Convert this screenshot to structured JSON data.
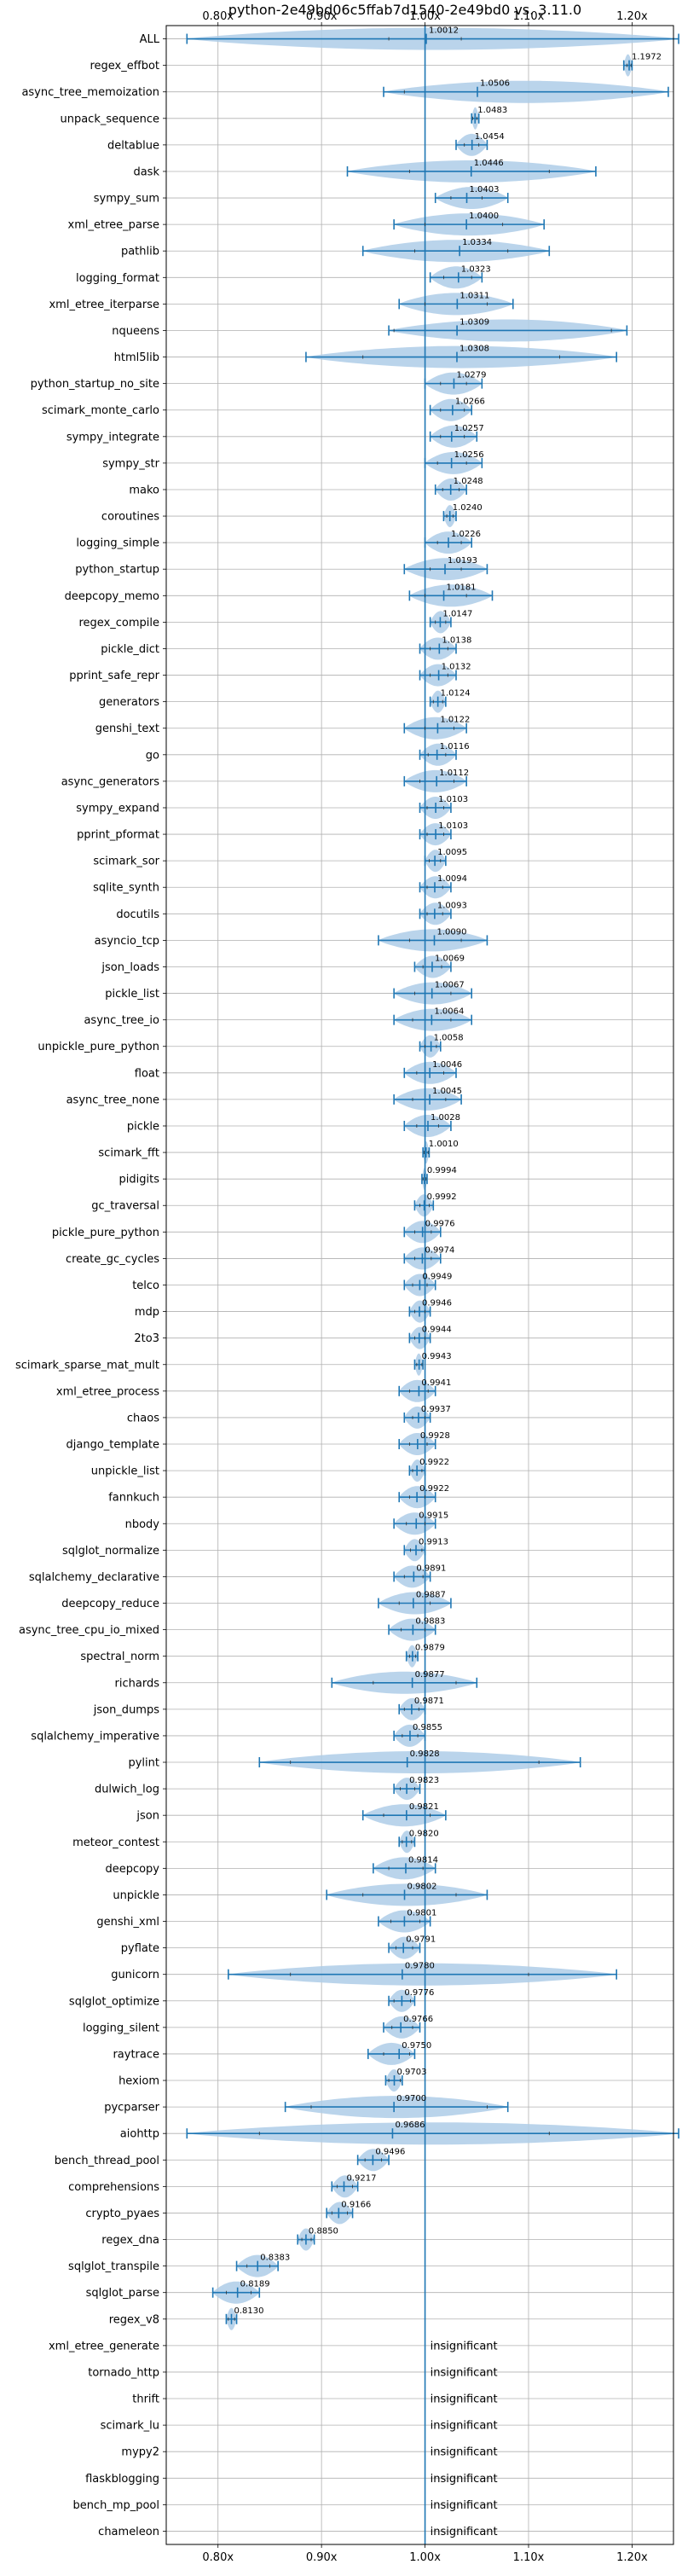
{
  "chart_data": {
    "type": "violin",
    "title": "python-2e49bd06c5ffab7d1540-2e49bd0 vs. 3.11.0",
    "xlim": [
      0.75,
      1.24
    ],
    "xticks": [
      0.8,
      0.9,
      1.0,
      1.1,
      1.2
    ],
    "xtick_labels": [
      "0.80x",
      "0.90x",
      "1.00x",
      "1.10x",
      "1.20x"
    ],
    "grid": true,
    "baseline": 1.0,
    "colors": {
      "violin": "#aecde8",
      "line": "#1f77b4",
      "grid": "#b0b0b0"
    },
    "insignificant_label": "insignificant",
    "benchmarks": [
      {
        "name": "ALL",
        "value": 1.0012,
        "label": "1.0012",
        "min": 0.77,
        "max": 1.245,
        "q1": 0.965,
        "q3": 1.035
      },
      {
        "name": "regex_effbot",
        "value": 1.1972,
        "label": "1.1972",
        "min": 1.192,
        "max": 1.2,
        "q1": 1.195,
        "q3": 1.199
      },
      {
        "name": "async_tree_memoization",
        "value": 1.0506,
        "label": "1.0506",
        "min": 0.96,
        "max": 1.235,
        "q1": 0.98,
        "q3": 1.2
      },
      {
        "name": "unpack_sequence",
        "value": 1.0483,
        "label": "1.0483",
        "min": 1.045,
        "max": 1.052,
        "q1": 1.046,
        "q3": 1.05
      },
      {
        "name": "deltablue",
        "value": 1.0454,
        "label": "1.0454",
        "min": 1.03,
        "max": 1.06,
        "q1": 1.038,
        "q3": 1.052
      },
      {
        "name": "dask",
        "value": 1.0446,
        "label": "1.0446",
        "min": 0.925,
        "max": 1.165,
        "q1": 0.985,
        "q3": 1.12
      },
      {
        "name": "sympy_sum",
        "value": 1.0403,
        "label": "1.0403",
        "min": 1.01,
        "max": 1.08,
        "q1": 1.025,
        "q3": 1.055
      },
      {
        "name": "xml_etree_parse",
        "value": 1.04,
        "label": "1.0400",
        "min": 0.97,
        "max": 1.115,
        "q1": 1.0,
        "q3": 1.075
      },
      {
        "name": "pathlib",
        "value": 1.0334,
        "label": "1.0334",
        "min": 0.94,
        "max": 1.12,
        "q1": 0.99,
        "q3": 1.08
      },
      {
        "name": "logging_format",
        "value": 1.0323,
        "label": "1.0323",
        "min": 1.005,
        "max": 1.055,
        "q1": 1.018,
        "q3": 1.045
      },
      {
        "name": "xml_etree_iterparse",
        "value": 1.0311,
        "label": "1.0311",
        "min": 0.975,
        "max": 1.085,
        "q1": 1.0,
        "q3": 1.06
      },
      {
        "name": "nqueens",
        "value": 1.0309,
        "label": "1.0309",
        "min": 0.965,
        "max": 1.195,
        "q1": 0.97,
        "q3": 1.18
      },
      {
        "name": "html5lib",
        "value": 1.0308,
        "label": "1.0308",
        "min": 0.885,
        "max": 1.185,
        "q1": 0.94,
        "q3": 1.13
      },
      {
        "name": "python_startup_no_site",
        "value": 1.0279,
        "label": "1.0279",
        "min": 1.0,
        "max": 1.055,
        "q1": 1.015,
        "q3": 1.04
      },
      {
        "name": "scimark_monte_carlo",
        "value": 1.0266,
        "label": "1.0266",
        "min": 1.005,
        "max": 1.045,
        "q1": 1.015,
        "q3": 1.038
      },
      {
        "name": "sympy_integrate",
        "value": 1.0257,
        "label": "1.0257",
        "min": 1.005,
        "max": 1.05,
        "q1": 1.015,
        "q3": 1.038
      },
      {
        "name": "sympy_str",
        "value": 1.0256,
        "label": "1.0256",
        "min": 1.0,
        "max": 1.055,
        "q1": 1.012,
        "q3": 1.04
      },
      {
        "name": "mako",
        "value": 1.0248,
        "label": "1.0248",
        "min": 1.01,
        "max": 1.04,
        "q1": 1.017,
        "q3": 1.033
      },
      {
        "name": "coroutines",
        "value": 1.024,
        "label": "1.0240",
        "min": 1.018,
        "max": 1.03,
        "q1": 1.021,
        "q3": 1.027
      },
      {
        "name": "logging_simple",
        "value": 1.0226,
        "label": "1.0226",
        "min": 1.0,
        "max": 1.045,
        "q1": 1.012,
        "q3": 1.035
      },
      {
        "name": "python_startup",
        "value": 1.0193,
        "label": "1.0193",
        "min": 0.98,
        "max": 1.06,
        "q1": 1.005,
        "q3": 1.035
      },
      {
        "name": "deepcopy_memo",
        "value": 1.0181,
        "label": "1.0181",
        "min": 0.985,
        "max": 1.065,
        "q1": 1.0,
        "q3": 1.04
      },
      {
        "name": "regex_compile",
        "value": 1.0147,
        "label": "1.0147",
        "min": 1.005,
        "max": 1.025,
        "q1": 1.01,
        "q3": 1.02
      },
      {
        "name": "pickle_dict",
        "value": 1.0138,
        "label": "1.0138",
        "min": 0.995,
        "max": 1.03,
        "q1": 1.005,
        "q3": 1.022
      },
      {
        "name": "pprint_safe_repr",
        "value": 1.0132,
        "label": "1.0132",
        "min": 0.995,
        "max": 1.03,
        "q1": 1.005,
        "q3": 1.022
      },
      {
        "name": "generators",
        "value": 1.0124,
        "label": "1.0124",
        "min": 1.005,
        "max": 1.02,
        "q1": 1.008,
        "q3": 1.017
      },
      {
        "name": "genshi_text",
        "value": 1.0122,
        "label": "1.0122",
        "min": 0.98,
        "max": 1.04,
        "q1": 1.0,
        "q3": 1.028
      },
      {
        "name": "go",
        "value": 1.0116,
        "label": "1.0116",
        "min": 0.995,
        "max": 1.03,
        "q1": 1.003,
        "q3": 1.02
      },
      {
        "name": "async_generators",
        "value": 1.0112,
        "label": "1.0112",
        "min": 0.98,
        "max": 1.04,
        "q1": 0.995,
        "q3": 1.028
      },
      {
        "name": "sympy_expand",
        "value": 1.0103,
        "label": "1.0103",
        "min": 0.995,
        "max": 1.025,
        "q1": 1.002,
        "q3": 1.018
      },
      {
        "name": "pprint_pformat",
        "value": 1.0103,
        "label": "1.0103",
        "min": 0.995,
        "max": 1.025,
        "q1": 1.002,
        "q3": 1.018
      },
      {
        "name": "scimark_sor",
        "value": 1.0095,
        "label": "1.0095",
        "min": 1.0,
        "max": 1.02,
        "q1": 1.004,
        "q3": 1.015
      },
      {
        "name": "sqlite_synth",
        "value": 1.0094,
        "label": "1.0094",
        "min": 0.995,
        "max": 1.025,
        "q1": 1.002,
        "q3": 1.017
      },
      {
        "name": "docutils",
        "value": 1.0093,
        "label": "1.0093",
        "min": 0.995,
        "max": 1.025,
        "q1": 1.002,
        "q3": 1.017
      },
      {
        "name": "asyncio_tcp",
        "value": 1.009,
        "label": "1.0090",
        "min": 0.955,
        "max": 1.06,
        "q1": 0.985,
        "q3": 1.035
      },
      {
        "name": "json_loads",
        "value": 1.0069,
        "label": "1.0069",
        "min": 0.99,
        "max": 1.025,
        "q1": 0.998,
        "q3": 1.016
      },
      {
        "name": "pickle_list",
        "value": 1.0067,
        "label": "1.0067",
        "min": 0.97,
        "max": 1.045,
        "q1": 0.99,
        "q3": 1.025
      },
      {
        "name": "async_tree_io",
        "value": 1.0064,
        "label": "1.0064",
        "min": 0.97,
        "max": 1.045,
        "q1": 0.988,
        "q3": 1.025
      },
      {
        "name": "unpickle_pure_python",
        "value": 1.0058,
        "label": "1.0058",
        "min": 0.995,
        "max": 1.015,
        "q1": 1.0,
        "q3": 1.011
      },
      {
        "name": "float",
        "value": 1.0046,
        "label": "1.0046",
        "min": 0.98,
        "max": 1.03,
        "q1": 0.992,
        "q3": 1.018
      },
      {
        "name": "async_tree_none",
        "value": 1.0045,
        "label": "1.0045",
        "min": 0.97,
        "max": 1.035,
        "q1": 0.988,
        "q3": 1.02
      },
      {
        "name": "pickle",
        "value": 1.0028,
        "label": "1.0028",
        "min": 0.98,
        "max": 1.025,
        "q1": 0.992,
        "q3": 1.013
      },
      {
        "name": "scimark_fft",
        "value": 1.001,
        "label": "1.0010",
        "min": 0.998,
        "max": 1.004,
        "q1": 0.999,
        "q3": 1.003
      },
      {
        "name": "pidigits",
        "value": 0.9994,
        "label": "0.9994",
        "min": 0.997,
        "max": 1.002,
        "q1": 0.998,
        "q3": 1.001
      },
      {
        "name": "gc_traversal",
        "value": 0.9992,
        "label": "0.9992",
        "min": 0.99,
        "max": 1.008,
        "q1": 0.995,
        "q3": 1.004
      },
      {
        "name": "pickle_pure_python",
        "value": 0.9976,
        "label": "0.9976",
        "min": 0.98,
        "max": 1.015,
        "q1": 0.99,
        "q3": 1.006
      },
      {
        "name": "create_gc_cycles",
        "value": 0.9974,
        "label": "0.9974",
        "min": 0.98,
        "max": 1.015,
        "q1": 0.99,
        "q3": 1.006
      },
      {
        "name": "telco",
        "value": 0.9949,
        "label": "0.9949",
        "min": 0.98,
        "max": 1.01,
        "q1": 0.988,
        "q3": 1.002
      },
      {
        "name": "mdp",
        "value": 0.9946,
        "label": "0.9946",
        "min": 0.985,
        "max": 1.005,
        "q1": 0.99,
        "q3": 1.0
      },
      {
        "name": "2to3",
        "value": 0.9944,
        "label": "0.9944",
        "min": 0.985,
        "max": 1.005,
        "q1": 0.99,
        "q3": 1.0
      },
      {
        "name": "scimark_sparse_mat_mult",
        "value": 0.9943,
        "label": "0.9943",
        "min": 0.99,
        "max": 0.998,
        "q1": 0.992,
        "q3": 0.997
      },
      {
        "name": "xml_etree_process",
        "value": 0.9941,
        "label": "0.9941",
        "min": 0.975,
        "max": 1.01,
        "q1": 0.985,
        "q3": 1.003
      },
      {
        "name": "chaos",
        "value": 0.9937,
        "label": "0.9937",
        "min": 0.98,
        "max": 1.005,
        "q1": 0.988,
        "q3": 1.0
      },
      {
        "name": "django_template",
        "value": 0.9928,
        "label": "0.9928",
        "min": 0.975,
        "max": 1.01,
        "q1": 0.985,
        "q3": 1.002
      },
      {
        "name": "unpickle_list",
        "value": 0.9922,
        "label": "0.9922",
        "min": 0.985,
        "max": 1.0,
        "q1": 0.988,
        "q3": 0.997
      },
      {
        "name": "fannkuch",
        "value": 0.9922,
        "label": "0.9922",
        "min": 0.975,
        "max": 1.01,
        "q1": 0.985,
        "q3": 1.0
      },
      {
        "name": "nbody",
        "value": 0.9915,
        "label": "0.9915",
        "min": 0.97,
        "max": 1.01,
        "q1": 0.982,
        "q3": 1.0
      },
      {
        "name": "sqlglot_normalize",
        "value": 0.9913,
        "label": "0.9913",
        "min": 0.98,
        "max": 1.0,
        "q1": 0.986,
        "q3": 0.997
      },
      {
        "name": "sqlalchemy_declarative",
        "value": 0.9891,
        "label": "0.9891",
        "min": 0.97,
        "max": 1.005,
        "q1": 0.98,
        "q3": 0.998
      },
      {
        "name": "deepcopy_reduce",
        "value": 0.9887,
        "label": "0.9887",
        "min": 0.955,
        "max": 1.025,
        "q1": 0.975,
        "q3": 1.005
      },
      {
        "name": "async_tree_cpu_io_mixed",
        "value": 0.9883,
        "label": "0.9883",
        "min": 0.965,
        "max": 1.01,
        "q1": 0.977,
        "q3": 1.0
      },
      {
        "name": "spectral_norm",
        "value": 0.9879,
        "label": "0.9879",
        "min": 0.982,
        "max": 0.993,
        "q1": 0.985,
        "q3": 0.991
      },
      {
        "name": "richards",
        "value": 0.9877,
        "label": "0.9877",
        "min": 0.91,
        "max": 1.05,
        "q1": 0.95,
        "q3": 1.03
      },
      {
        "name": "json_dumps",
        "value": 0.9871,
        "label": "0.9871",
        "min": 0.975,
        "max": 1.0,
        "q1": 0.98,
        "q3": 0.994
      },
      {
        "name": "sqlalchemy_imperative",
        "value": 0.9855,
        "label": "0.9855",
        "min": 0.97,
        "max": 1.0,
        "q1": 0.978,
        "q3": 0.993
      },
      {
        "name": "pylint",
        "value": 0.9828,
        "label": "0.9828",
        "min": 0.84,
        "max": 1.15,
        "q1": 0.87,
        "q3": 1.11
      },
      {
        "name": "dulwich_log",
        "value": 0.9823,
        "label": "0.9823",
        "min": 0.97,
        "max": 0.995,
        "q1": 0.976,
        "q3": 0.99
      },
      {
        "name": "json",
        "value": 0.9821,
        "label": "0.9821",
        "min": 0.94,
        "max": 1.02,
        "q1": 0.96,
        "q3": 1.005
      },
      {
        "name": "meteor_contest",
        "value": 0.982,
        "label": "0.9820",
        "min": 0.975,
        "max": 0.99,
        "q1": 0.978,
        "q3": 0.987
      },
      {
        "name": "deepcopy",
        "value": 0.9814,
        "label": "0.9814",
        "min": 0.95,
        "max": 1.01,
        "q1": 0.965,
        "q3": 0.998
      },
      {
        "name": "unpickle",
        "value": 0.9802,
        "label": "0.9802",
        "min": 0.905,
        "max": 1.06,
        "q1": 0.94,
        "q3": 1.03
      },
      {
        "name": "genshi_xml",
        "value": 0.9801,
        "label": "0.9801",
        "min": 0.955,
        "max": 1.005,
        "q1": 0.967,
        "q3": 0.995
      },
      {
        "name": "pyflate",
        "value": 0.9791,
        "label": "0.9791",
        "min": 0.965,
        "max": 0.995,
        "q1": 0.972,
        "q3": 0.988
      },
      {
        "name": "gunicorn",
        "value": 0.978,
        "label": "0.9780",
        "min": 0.81,
        "max": 1.185,
        "q1": 0.87,
        "q3": 1.1
      },
      {
        "name": "sqlglot_optimize",
        "value": 0.9776,
        "label": "0.9776",
        "min": 0.965,
        "max": 0.99,
        "q1": 0.97,
        "q3": 0.986
      },
      {
        "name": "logging_silent",
        "value": 0.9766,
        "label": "0.9766",
        "min": 0.96,
        "max": 0.995,
        "q1": 0.968,
        "q3": 0.988
      },
      {
        "name": "raytrace",
        "value": 0.975,
        "label": "0.9750",
        "min": 0.945,
        "max": 0.99,
        "q1": 0.96,
        "q3": 0.985
      },
      {
        "name": "hexiom",
        "value": 0.9703,
        "label": "0.9703",
        "min": 0.962,
        "max": 0.978,
        "q1": 0.965,
        "q3": 0.976
      },
      {
        "name": "pycparser",
        "value": 0.97,
        "label": "0.9700",
        "min": 0.865,
        "max": 1.08,
        "q1": 0.89,
        "q3": 1.06
      },
      {
        "name": "aiohttp",
        "value": 0.9686,
        "label": "0.9686",
        "min": 0.77,
        "max": 1.245,
        "q1": 0.84,
        "q3": 1.12
      },
      {
        "name": "bench_thread_pool",
        "value": 0.9496,
        "label": "0.9496",
        "min": 0.935,
        "max": 0.965,
        "q1": 0.942,
        "q3": 0.958
      },
      {
        "name": "comprehensions",
        "value": 0.9217,
        "label": "0.9217",
        "min": 0.91,
        "max": 0.935,
        "q1": 0.915,
        "q3": 0.93
      },
      {
        "name": "crypto_pyaes",
        "value": 0.9166,
        "label": "0.9166",
        "min": 0.905,
        "max": 0.93,
        "q1": 0.91,
        "q3": 0.925
      },
      {
        "name": "regex_dna",
        "value": 0.885,
        "label": "0.8850",
        "min": 0.877,
        "max": 0.893,
        "q1": 0.881,
        "q3": 0.89
      },
      {
        "name": "sqlglot_transpile",
        "value": 0.8383,
        "label": "0.8383",
        "min": 0.818,
        "max": 0.858,
        "q1": 0.828,
        "q3": 0.85
      },
      {
        "name": "sqlglot_parse",
        "value": 0.8189,
        "label": "0.8189",
        "min": 0.795,
        "max": 0.84,
        "q1": 0.808,
        "q3": 0.832
      },
      {
        "name": "regex_v8",
        "value": 0.813,
        "label": "0.8130",
        "min": 0.808,
        "max": 0.818,
        "q1": 0.81,
        "q3": 0.816
      },
      {
        "name": "xml_etree_generate",
        "insignificant": true
      },
      {
        "name": "tornado_http",
        "insignificant": true
      },
      {
        "name": "thrift",
        "insignificant": true
      },
      {
        "name": "scimark_lu",
        "insignificant": true
      },
      {
        "name": "mypy2",
        "insignificant": true
      },
      {
        "name": "flaskblogging",
        "insignificant": true
      },
      {
        "name": "bench_mp_pool",
        "insignificant": true
      },
      {
        "name": "chameleon",
        "insignificant": true
      }
    ]
  }
}
